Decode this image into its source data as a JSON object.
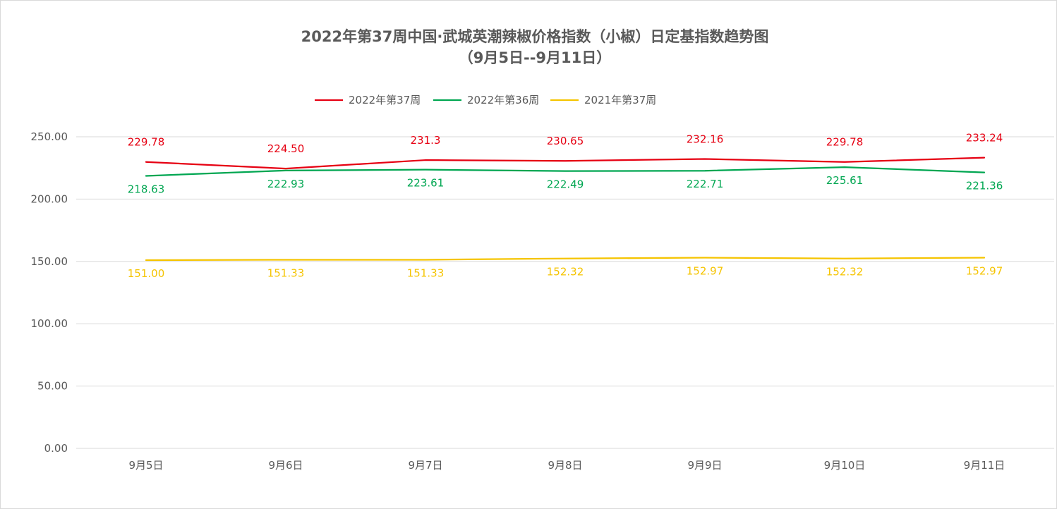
{
  "chart_data": {
    "type": "line",
    "title": "2022年第37周中国·武城英潮辣椒价格指数（小椒）日定基指数趋势图",
    "subtitle": "（9月5日--9月11日）",
    "xlabel": "",
    "ylabel": "",
    "categories": [
      "9月5日",
      "9月6日",
      "9月7日",
      "9月8日",
      "9月9日",
      "9月10日",
      "9月11日"
    ],
    "ylim": [
      0,
      250
    ],
    "yticks": [
      "0.00",
      "50.00",
      "100.00",
      "150.00",
      "200.00",
      "250.00"
    ],
    "grid": true,
    "legend": "top-center",
    "series": [
      {
        "name": "2022年第37周",
        "color": "#e60012",
        "values": [
          229.78,
          224.5,
          231.3,
          230.65,
          232.16,
          229.78,
          233.24
        ],
        "labels": [
          "229.78",
          "224.50",
          "231.3",
          "230.65",
          "232.16",
          "229.78",
          "233.24"
        ],
        "label_position": "above"
      },
      {
        "name": "2022年第36周",
        "color": "#00a651",
        "values": [
          218.63,
          222.93,
          223.61,
          222.49,
          222.71,
          225.61,
          221.36
        ],
        "labels": [
          "218.63",
          "222.93",
          "223.61",
          "222.49",
          "222.71",
          "225.61",
          "221.36"
        ],
        "label_position": "below"
      },
      {
        "name": "2021年第37周",
        "color": "#f5c400",
        "values": [
          151.0,
          151.33,
          151.33,
          152.32,
          152.97,
          152.32,
          152.97
        ],
        "labels": [
          "151.00",
          "151.33",
          "151.33",
          "152.32",
          "152.97",
          "152.32",
          "152.97"
        ],
        "label_position": "below"
      }
    ]
  }
}
